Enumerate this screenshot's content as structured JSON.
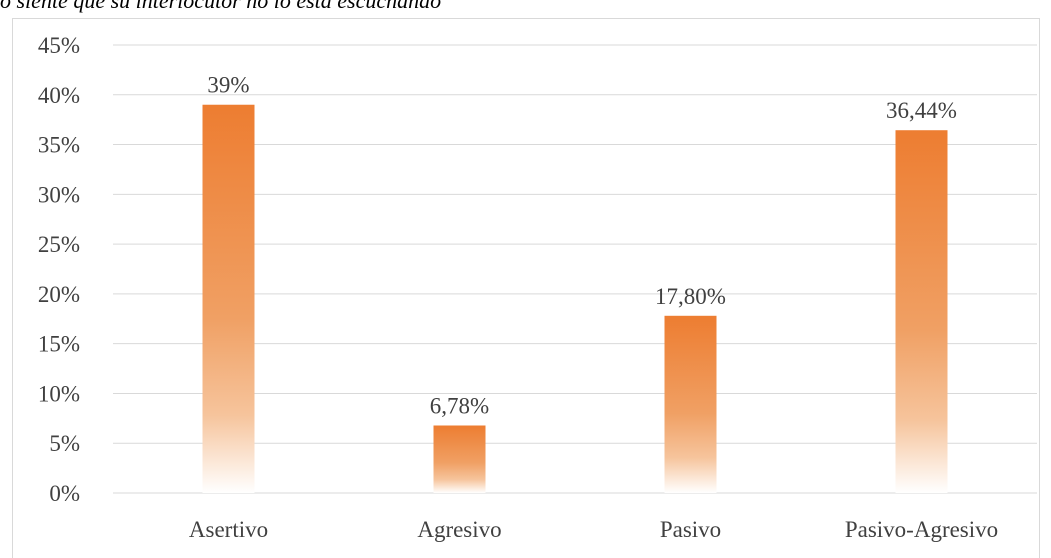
{
  "chart_data": {
    "type": "bar",
    "title": "o siente que su interlocutor no lo está escuchando",
    "categories": [
      "Asertivo",
      "Agresivo",
      "Pasivo",
      "Pasivo-Agresivo"
    ],
    "values": [
      39,
      6.78,
      17.8,
      36.44
    ],
    "value_labels": [
      "39%",
      "6,78%",
      "17,80%",
      "36,44%"
    ],
    "color": "#ed7d31",
    "ylim": [
      0,
      45
    ],
    "yticks": [
      {
        "value": 0,
        "label": "0%"
      },
      {
        "value": 5,
        "label": "5%"
      },
      {
        "value": 10,
        "label": "10%"
      },
      {
        "value": 15,
        "label": "15%"
      },
      {
        "value": 20,
        "label": "20%"
      },
      {
        "value": 25,
        "label": "25%"
      },
      {
        "value": 30,
        "label": "30%"
      },
      {
        "value": 35,
        "label": "35%"
      },
      {
        "value": 40,
        "label": "40%"
      },
      {
        "value": 45,
        "label": "45%"
      }
    ],
    "grid": true
  }
}
